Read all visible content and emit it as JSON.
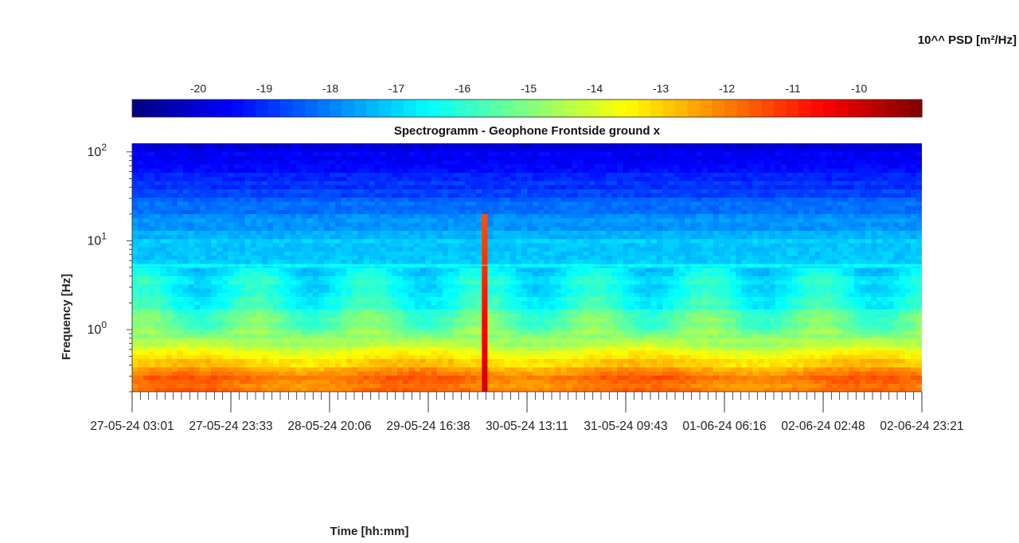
{
  "chart_data": {
    "type": "heatmap",
    "title": "Spectrogramm - Geophone Frontside ground x",
    "xlabel": "Time [hh:mm]",
    "ylabel": "Frequency [Hz]",
    "colorbar": {
      "label": "10^^ PSD [m²/Hz]",
      "ticks": [
        "-20",
        "-19",
        "-18",
        "-17",
        "-16",
        "-15",
        "-14",
        "-13",
        "-12",
        "-11",
        "-10"
      ],
      "range": [
        -21,
        -9.05
      ],
      "colormap": "jet",
      "placement": "top"
    },
    "y_scale": "log",
    "ylim": [
      0.2,
      125
    ],
    "y_ticks": [
      {
        "value": 1,
        "base": "10",
        "exp": "0"
      },
      {
        "value": 10,
        "base": "10",
        "exp": "1"
      },
      {
        "value": 100,
        "base": "10",
        "exp": "2"
      }
    ],
    "x_ticks": [
      "27-05-24  03:01",
      "27-05-24  23:33",
      "28-05-24  20:06",
      "29-05-24  16:38",
      "30-05-24  13:11",
      "31-05-24  09:43",
      "01-06-24  06:16",
      "02-06-24  02:48",
      "02-06-24  23:21"
    ],
    "grid": false,
    "features": [
      {
        "description": "short broadband spike",
        "time": "30-05-24 ~05:00",
        "peak_frequency_hz": 20,
        "log10_psd": -10
      }
    ],
    "typical_levels": [
      {
        "frequency_hz": 100,
        "log10_psd": -19.8
      },
      {
        "frequency_hz": 10,
        "log10_psd": -17.3
      },
      {
        "frequency_hz": 2,
        "log10_psd": -16.2
      },
      {
        "frequency_hz": 0.7,
        "log10_psd": -14.5
      },
      {
        "frequency_hz": 0.3,
        "log10_psd": -12
      }
    ]
  }
}
